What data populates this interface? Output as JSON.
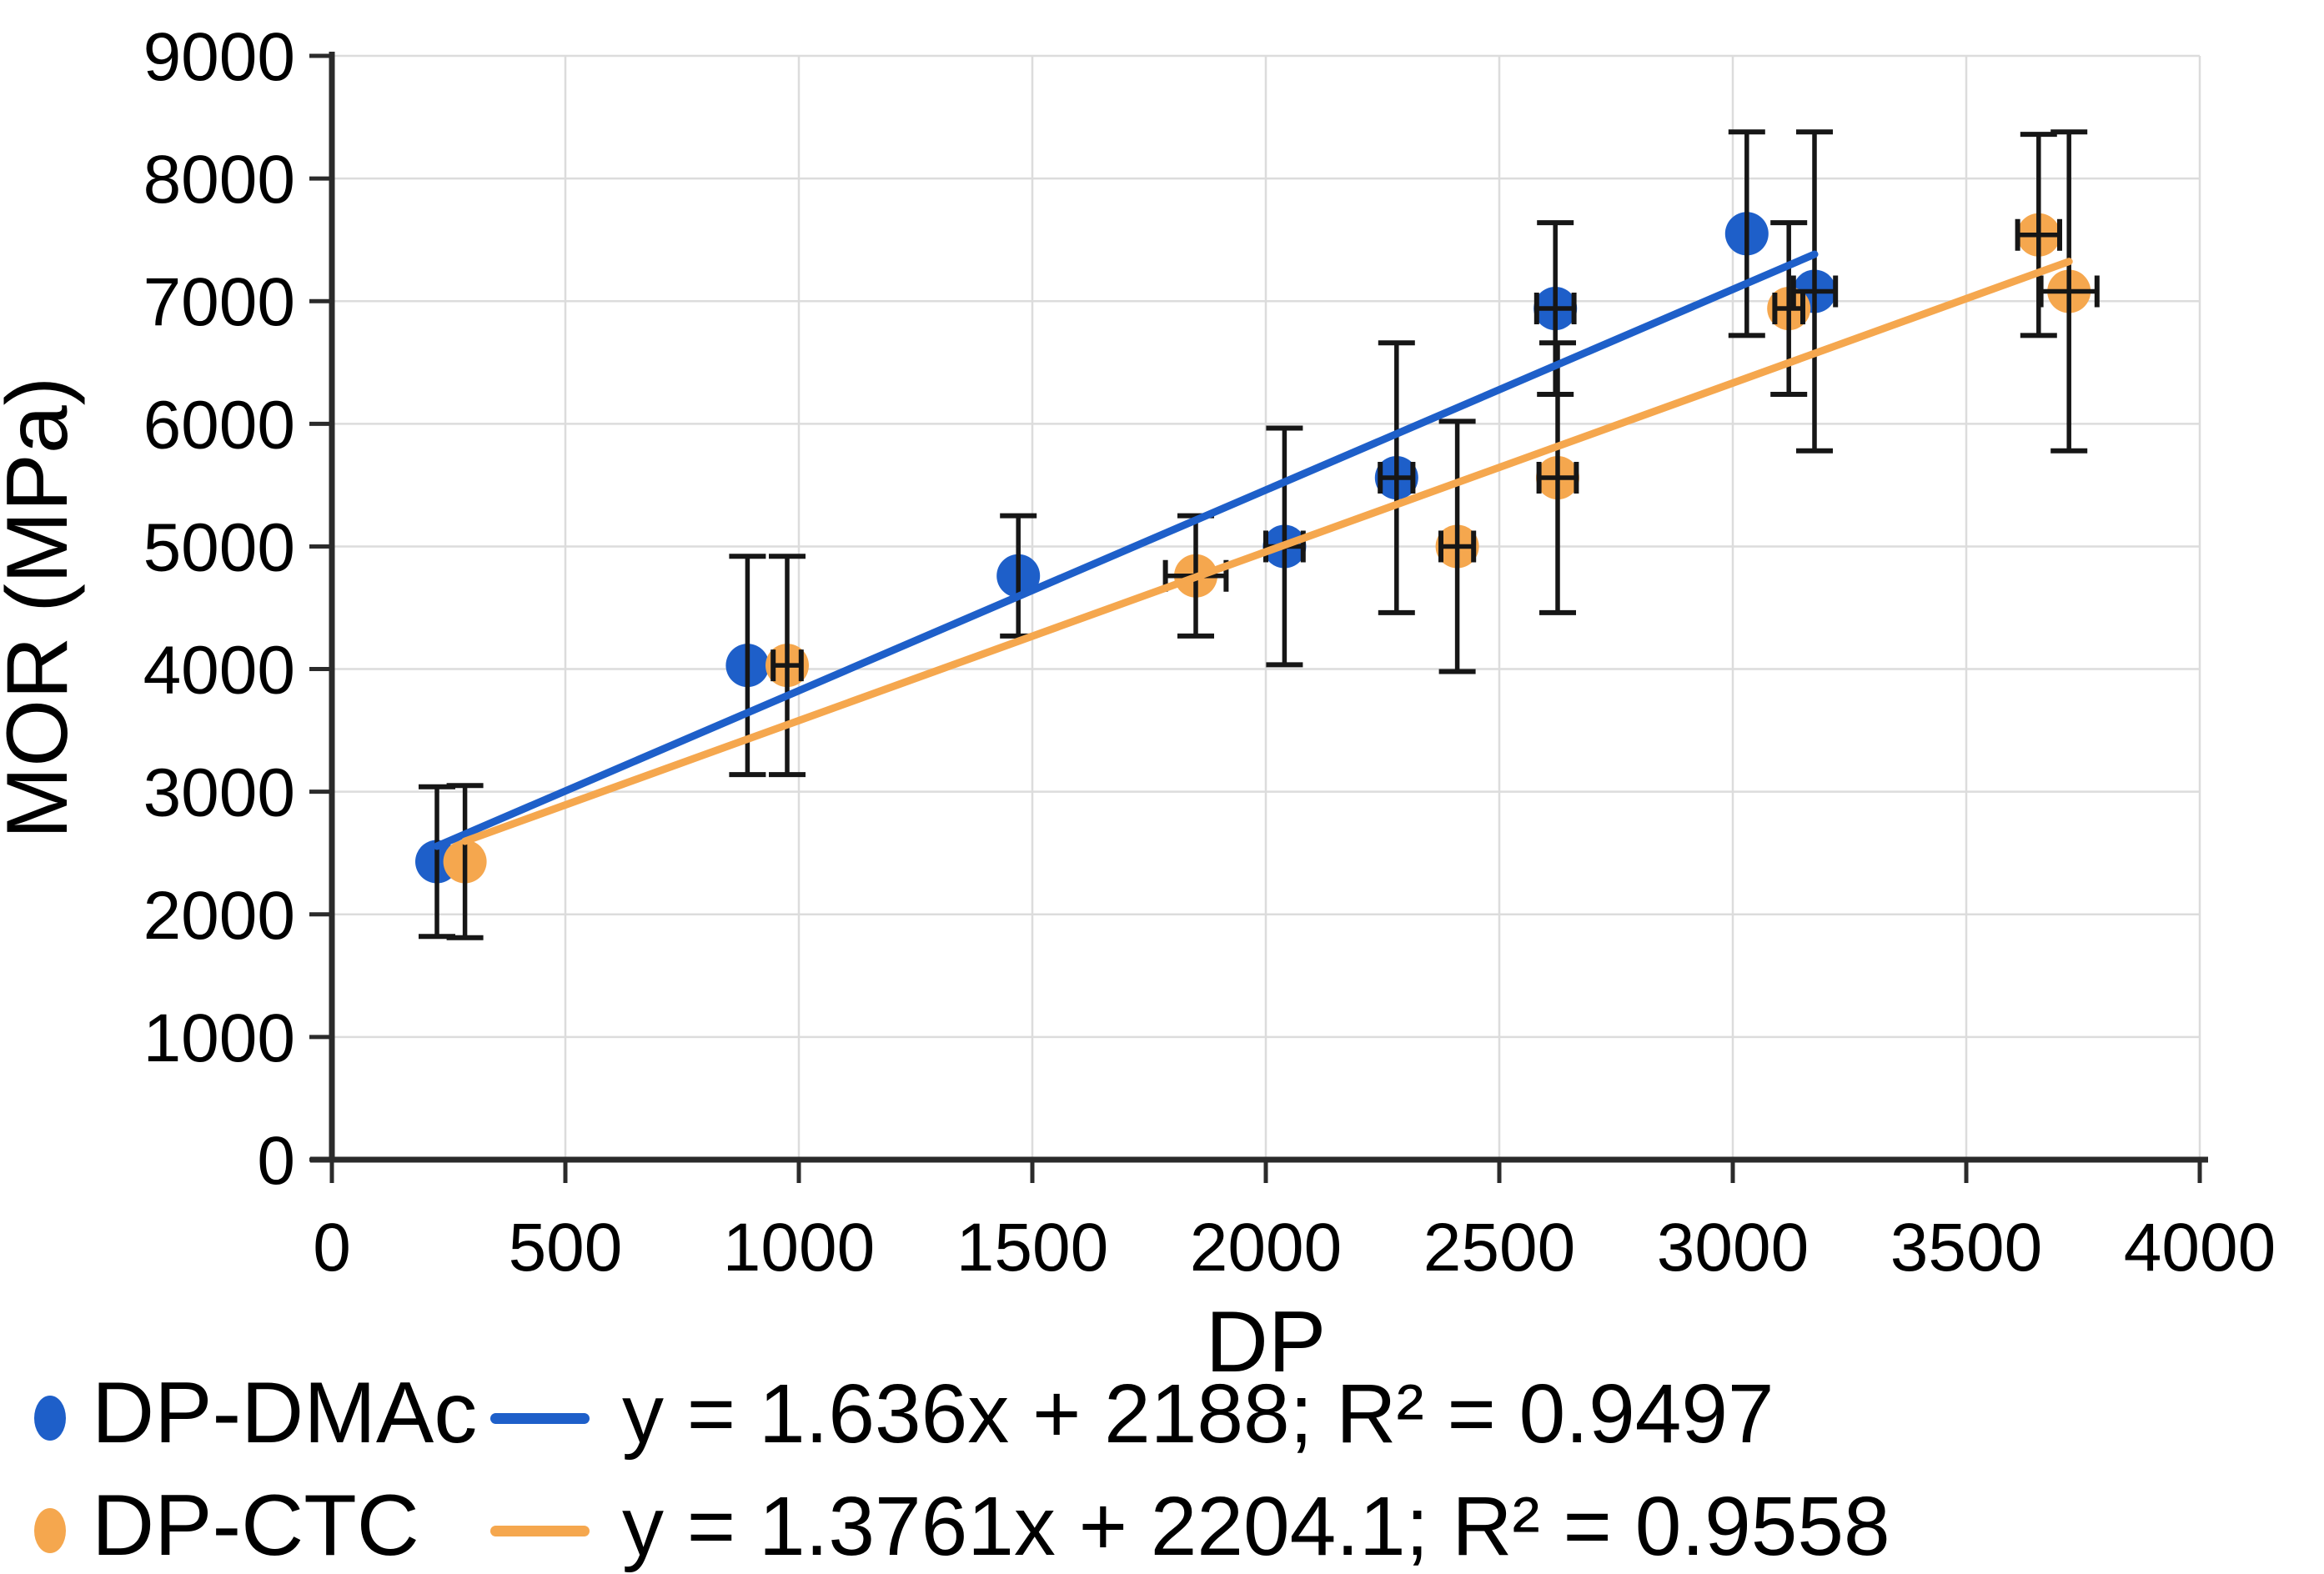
{
  "figure": {
    "xlabel": "DP",
    "ylabel": "MOR (MPa)"
  },
  "colors": {
    "blue": "#1e5fc9",
    "orange": "#f5a74e",
    "error_bar": "#161616",
    "axis": "#2b2b2b",
    "grid": "#dcdcdc",
    "text": "#000000",
    "background": "#ffffff"
  },
  "legend": {
    "rows": [
      {
        "label": "DP-DMAc",
        "marker_color": "#1e5fc9",
        "equation": "y = 1.636x + 2188; R² = 0.9497"
      },
      {
        "label": "DP-CTC",
        "marker_color": "#f5a74e",
        "equation": "y = 1.3761x + 2204.1; R² = 0.9558"
      }
    ]
  },
  "chart_data": {
    "type": "scatter",
    "title": "",
    "xlabel": "DP",
    "ylabel": "MOR (MPa)",
    "xlim": [
      0,
      4000
    ],
    "ylim": [
      0,
      9000
    ],
    "x_ticks": [
      0,
      500,
      1000,
      1500,
      2000,
      2500,
      3000,
      3500,
      4000
    ],
    "y_ticks": [
      0,
      1000,
      2000,
      3000,
      4000,
      5000,
      6000,
      7000,
      8000,
      9000
    ],
    "grid": true,
    "legend_position": "bottom-left",
    "series": [
      {
        "name": "DP-DMAc",
        "color": "#1e5fc9",
        "marker": "circle",
        "points": [
          {
            "x": 225,
            "y": 2430,
            "xerr": 0,
            "yerr": 610
          },
          {
            "x": 890,
            "y": 4030,
            "xerr": 0,
            "yerr": 890
          },
          {
            "x": 1470,
            "y": 4760,
            "xerr": 0,
            "yerr": 490
          },
          {
            "x": 2040,
            "y": 5000,
            "xerr": 40,
            "yerr": 965
          },
          {
            "x": 2280,
            "y": 5560,
            "xerr": 35,
            "yerr": 1100
          },
          {
            "x": 2620,
            "y": 6940,
            "xerr": 40,
            "yerr": 700
          },
          {
            "x": 3030,
            "y": 7550,
            "xerr": 0,
            "yerr": 830
          },
          {
            "x": 3175,
            "y": 7080,
            "xerr": 45,
            "yerr": 1300
          }
        ],
        "trendline": {
          "slope": 1.636,
          "intercept": 2188,
          "r2": 0.9497,
          "x_range": [
            225,
            3175
          ],
          "label": "y = 1.636x + 2188; R² = 0.9497"
        }
      },
      {
        "name": "DP-CTC",
        "color": "#f5a74e",
        "marker": "circle",
        "points": [
          {
            "x": 285,
            "y": 2430,
            "xerr": 0,
            "yerr": 620
          },
          {
            "x": 975,
            "y": 4030,
            "xerr": 30,
            "yerr": 890
          },
          {
            "x": 1850,
            "y": 4760,
            "xerr": 65,
            "yerr": 490
          },
          {
            "x": 2410,
            "y": 5000,
            "xerr": 35,
            "yerr": 1020
          },
          {
            "x": 2625,
            "y": 5560,
            "xerr": 40,
            "yerr": 1100
          },
          {
            "x": 3120,
            "y": 6940,
            "xerr": 30,
            "yerr": 700
          },
          {
            "x": 3655,
            "y": 7540,
            "xerr": 45,
            "yerr": 820
          },
          {
            "x": 3720,
            "y": 7080,
            "xerr": 60,
            "yerr": 1300
          }
        ],
        "trendline": {
          "slope": 1.3761,
          "intercept": 2204.1,
          "r2": 0.9558,
          "x_range": [
            285,
            3720
          ],
          "label": "y = 1.3761x + 2204.1; R² = 0.9558"
        }
      }
    ]
  }
}
